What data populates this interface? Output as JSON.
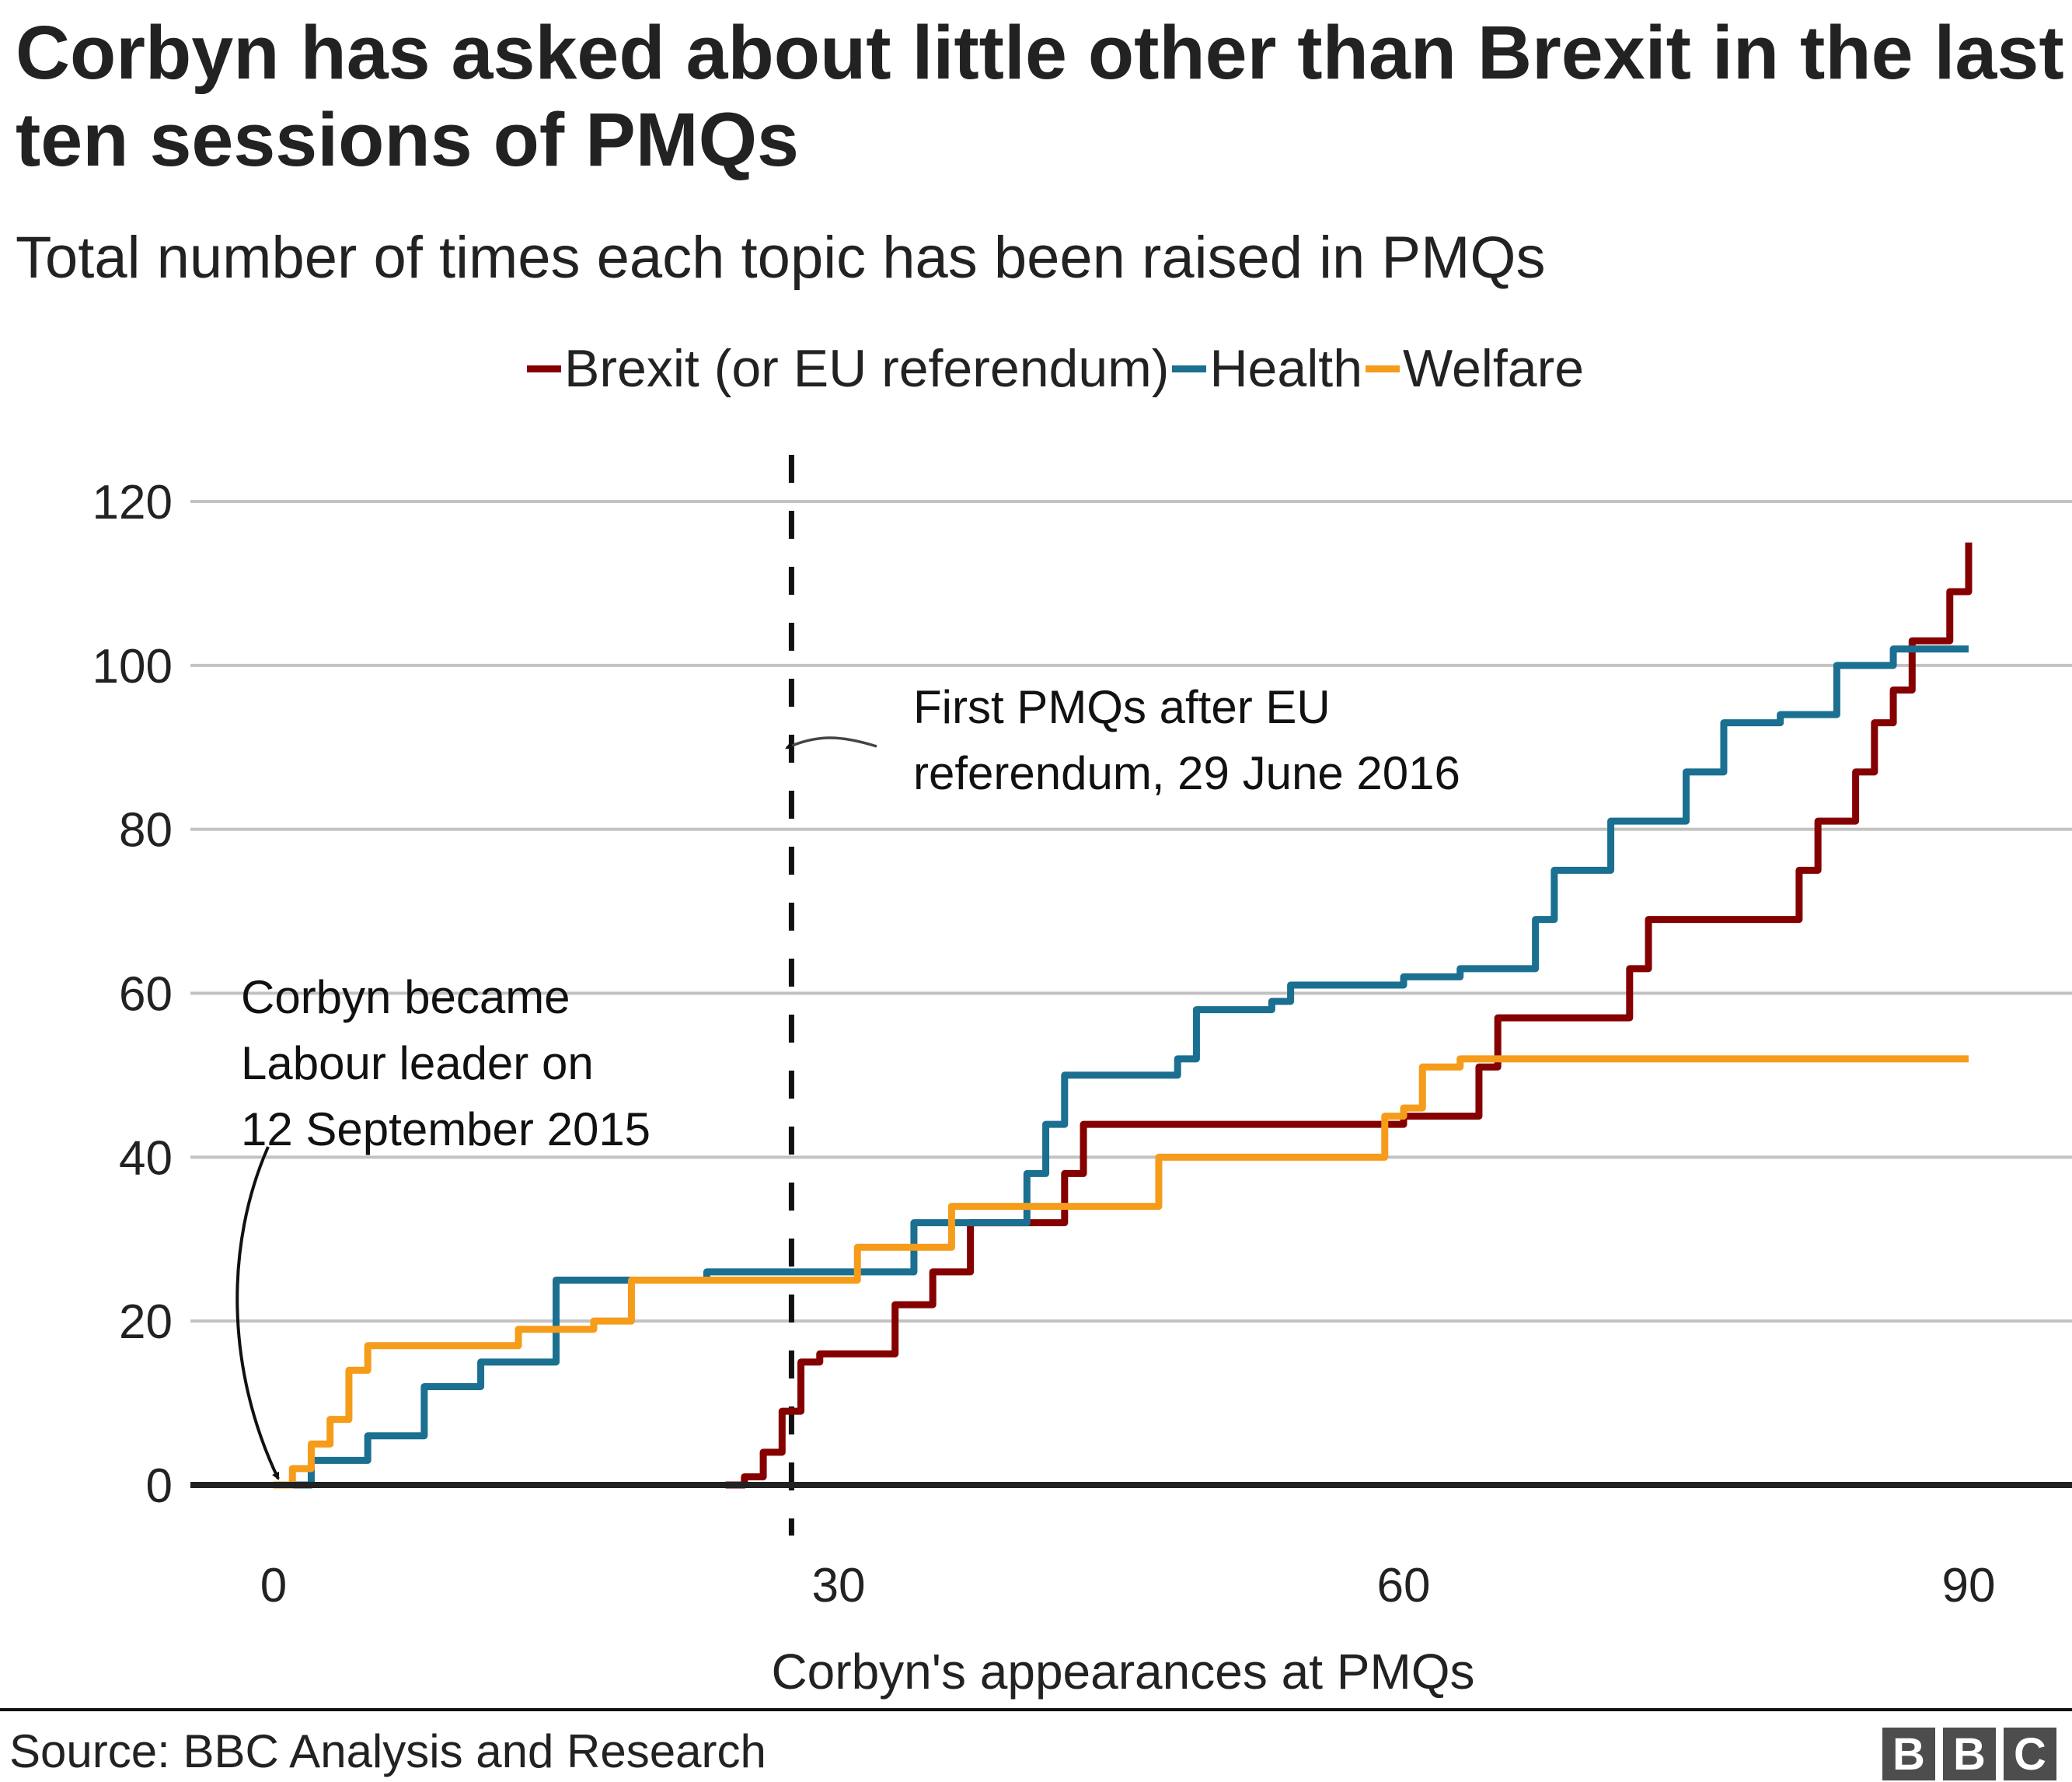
{
  "chart_data": {
    "type": "line",
    "step": true,
    "title": "Corbyn has asked about little other than Brexit in the last ten sessions of PMQs",
    "subtitle": "Total number of times each topic has been raised in PMQs",
    "xlabel": "Corbyn's appearances at PMQs",
    "ylabel": "",
    "xlim": [
      0,
      90
    ],
    "ylim": [
      0,
      120
    ],
    "xticks": [
      0,
      30,
      60,
      90
    ],
    "yticks": [
      0,
      20,
      40,
      60,
      80,
      100,
      120
    ],
    "grid": true,
    "legend_position": "top",
    "series": [
      {
        "name": "Brexit (or EU referendum)",
        "color": "#850000",
        "points": [
          [
            24,
            0
          ],
          [
            25,
            1
          ],
          [
            26,
            4
          ],
          [
            27,
            9
          ],
          [
            28,
            15
          ],
          [
            29,
            16
          ],
          [
            33,
            22
          ],
          [
            35,
            26
          ],
          [
            37,
            32
          ],
          [
            42,
            38
          ],
          [
            43,
            44
          ],
          [
            60,
            45
          ],
          [
            64,
            51
          ],
          [
            65,
            57
          ],
          [
            72,
            63
          ],
          [
            73,
            69
          ],
          [
            81,
            75
          ],
          [
            82,
            81
          ],
          [
            84,
            87
          ],
          [
            85,
            93
          ],
          [
            86,
            97
          ],
          [
            87,
            103
          ],
          [
            89,
            109
          ],
          [
            90,
            115
          ]
        ]
      },
      {
        "name": "Health",
        "color": "#1b6f91",
        "points": [
          [
            0,
            0
          ],
          [
            2,
            3
          ],
          [
            5,
            6
          ],
          [
            8,
            12
          ],
          [
            11,
            15
          ],
          [
            15,
            25
          ],
          [
            23,
            26
          ],
          [
            34,
            32
          ],
          [
            40,
            38
          ],
          [
            41,
            44
          ],
          [
            42,
            50
          ],
          [
            48,
            52
          ],
          [
            49,
            58
          ],
          [
            53,
            59
          ],
          [
            54,
            61
          ],
          [
            60,
            62
          ],
          [
            63,
            63
          ],
          [
            67,
            69
          ],
          [
            68,
            75
          ],
          [
            71,
            81
          ],
          [
            75,
            87
          ],
          [
            77,
            93
          ],
          [
            80,
            94
          ],
          [
            83,
            100
          ],
          [
            86,
            102
          ],
          [
            90,
            102
          ]
        ]
      },
      {
        "name": "Welfare",
        "color": "#f59c1a",
        "points": [
          [
            0,
            0
          ],
          [
            1,
            2
          ],
          [
            2,
            5
          ],
          [
            3,
            8
          ],
          [
            4,
            14
          ],
          [
            5,
            17
          ],
          [
            13,
            19
          ],
          [
            17,
            20
          ],
          [
            19,
            25
          ],
          [
            31,
            29
          ],
          [
            36,
            34
          ],
          [
            47,
            40
          ],
          [
            59,
            45
          ],
          [
            60,
            46
          ],
          [
            61,
            51
          ],
          [
            63,
            52
          ],
          [
            90,
            52
          ]
        ]
      }
    ],
    "annotations": [
      {
        "text_lines": [
          "Corbyn became",
          "Labour leader on",
          "12 September 2015"
        ],
        "x": 0,
        "y": 0
      },
      {
        "text_lines": [
          "First PMQs after EU",
          "referendum, 29 June 2016"
        ],
        "x": 27.5,
        "y": 90,
        "vline_x": 27.5
      }
    ]
  },
  "legend": [
    {
      "label": "Brexit (or EU referendum)",
      "color": "#850000"
    },
    {
      "label": "Health",
      "color": "#1b6f91"
    },
    {
      "label": "Welfare",
      "color": "#f59c1a"
    }
  ],
  "footer": {
    "source": "Source: BBC Analysis and Research",
    "logo": [
      "B",
      "B",
      "C"
    ]
  }
}
